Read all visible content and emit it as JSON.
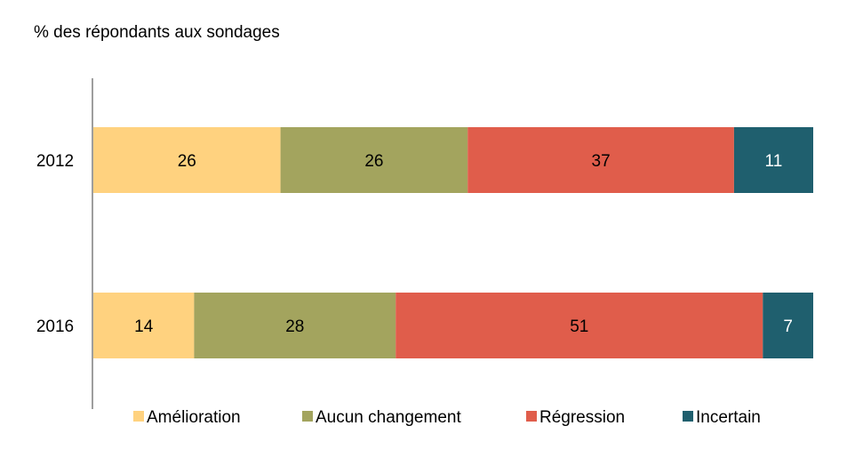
{
  "chart_data": {
    "type": "bar",
    "orientation": "horizontal",
    "stacked": true,
    "title": "",
    "ylabel": "% des répondants aux sondages",
    "categories": [
      "2012",
      "2016"
    ],
    "series": [
      {
        "name": "Amélioration",
        "values": [
          26,
          14
        ],
        "color": "#FFD27F",
        "label_color": "#000000"
      },
      {
        "name": "Aucun changement",
        "values": [
          26,
          28
        ],
        "color": "#A3A45E",
        "label_color": "#000000"
      },
      {
        "name": "Régression",
        "values": [
          37,
          51
        ],
        "color": "#E05D4B",
        "label_color": "#000000"
      },
      {
        "name": "Incertain",
        "values": [
          11,
          7
        ],
        "color": "#1F5F6E",
        "label_color": "#FFFFFF"
      }
    ],
    "xlim": [
      0,
      100
    ],
    "grid": false,
    "legend_position": "bottom"
  }
}
